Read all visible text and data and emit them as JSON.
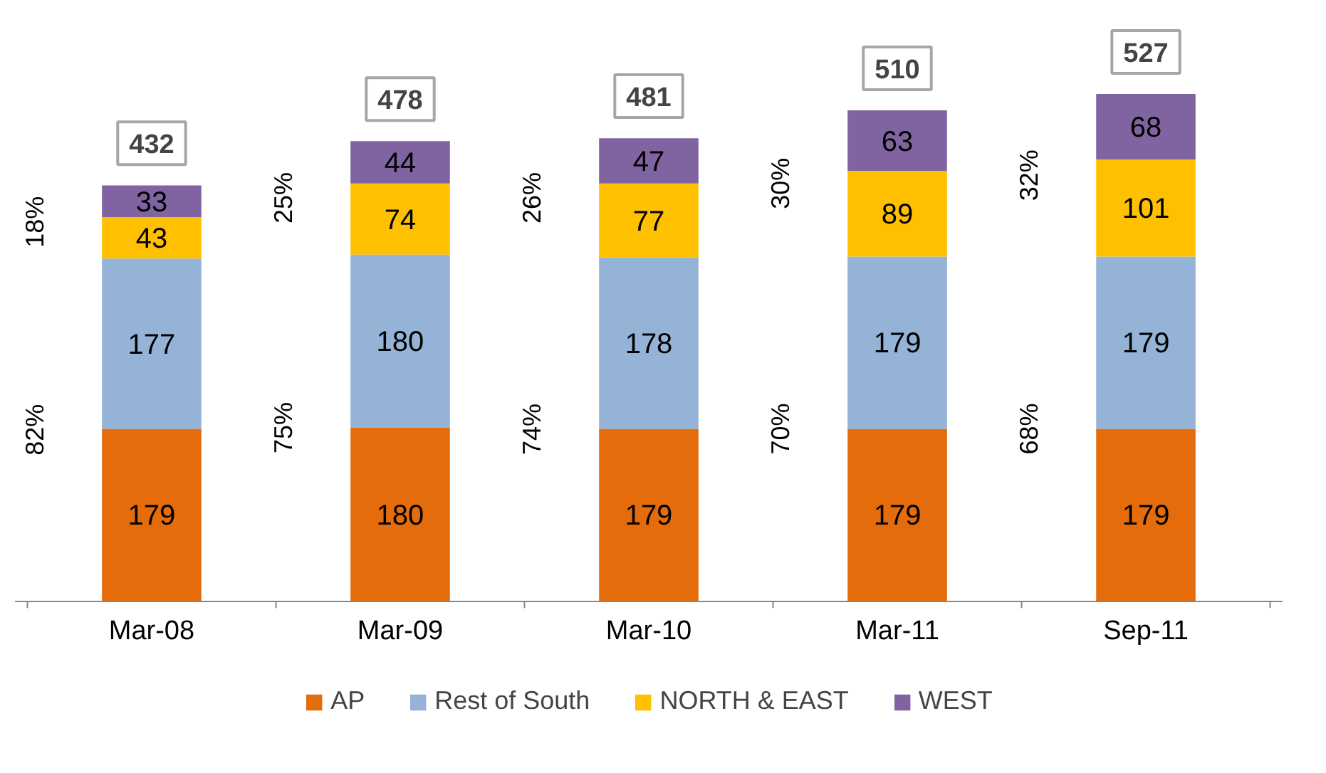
{
  "chart_data": {
    "type": "bar",
    "stacked": true,
    "categories": [
      "Mar-08",
      "Mar-09",
      "Mar-10",
      "Mar-11",
      "Sep-11"
    ],
    "series": [
      {
        "name": "AP",
        "color": "#e46c0a",
        "values": [
          179,
          180,
          179,
          179,
          179
        ]
      },
      {
        "name": "Rest of South",
        "color": "#95b3d7",
        "values": [
          177,
          180,
          178,
          179,
          179
        ]
      },
      {
        "name": "NORTH & EAST",
        "color": "#ffc000",
        "values": [
          43,
          74,
          77,
          89,
          101
        ]
      },
      {
        "name": "WEST",
        "color": "#8064a2",
        "values": [
          33,
          44,
          47,
          63,
          68
        ]
      }
    ],
    "data_labels": true,
    "totals": [
      "432",
      "478",
      "481",
      "510",
      "527"
    ],
    "legend": "bottom",
    "grid": false,
    "annotations": [
      "82%",
      "18%",
      "75%",
      "25%",
      "74%",
      "26%",
      "70%",
      "30%",
      "68%",
      "32%"
    ]
  }
}
